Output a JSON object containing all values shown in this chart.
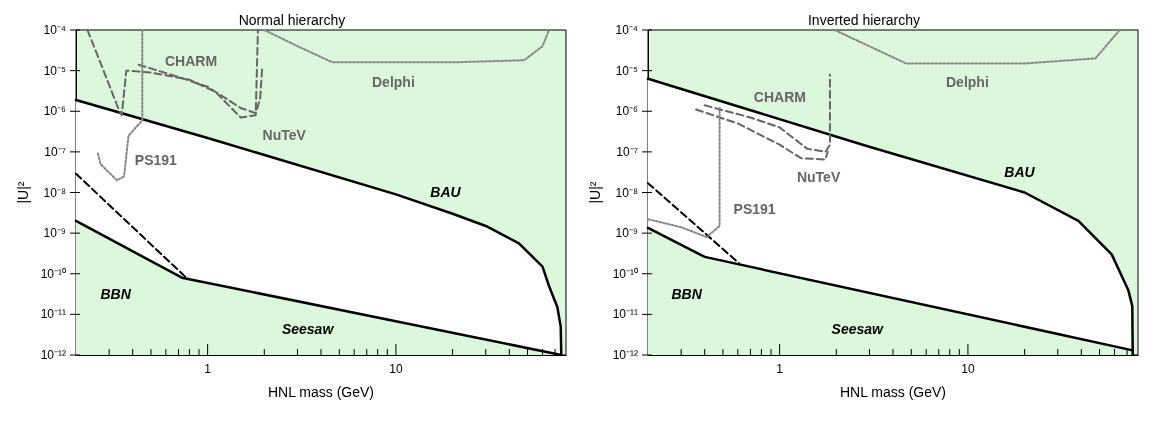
{
  "chart_data": [
    {
      "type": "line",
      "title": "Normal hierarchy",
      "xlabel": "HNL mass (GeV)",
      "ylabel": "|U|²",
      "log": "xy",
      "grid": false,
      "xlim": [
        0.2,
        80
      ],
      "ylim": [
        1e-12,
        0.0001
      ],
      "xticks": [
        {
          "value": 0.3,
          "label": null
        },
        {
          "value": 0.4,
          "label": null
        },
        {
          "value": 0.5,
          "label": null
        },
        {
          "value": 0.6,
          "label": null
        },
        {
          "value": 0.7,
          "label": null
        },
        {
          "value": 0.8,
          "label": null
        },
        {
          "value": 0.9,
          "label": null
        },
        {
          "value": 1,
          "label": "1"
        },
        {
          "value": 2,
          "label": null
        },
        {
          "value": 3,
          "label": null
        },
        {
          "value": 4,
          "label": null
        },
        {
          "value": 5,
          "label": null
        },
        {
          "value": 6,
          "label": null
        },
        {
          "value": 7,
          "label": null
        },
        {
          "value": 8,
          "label": null
        },
        {
          "value": 9,
          "label": null
        },
        {
          "value": 10,
          "label": "10"
        },
        {
          "value": 20,
          "label": null
        },
        {
          "value": 30,
          "label": null
        },
        {
          "value": 40,
          "label": null
        },
        {
          "value": 50,
          "label": null
        },
        {
          "value": 60,
          "label": null
        },
        {
          "value": 70,
          "label": null
        }
      ],
      "yticks": [
        {
          "value": 1e-12,
          "label": "10⁻¹²"
        },
        {
          "value": 1e-11,
          "label": "10⁻¹¹"
        },
        {
          "value": 1e-10,
          "label": "10⁻¹⁰"
        },
        {
          "value": 1e-09,
          "label": "10⁻⁹"
        },
        {
          "value": 1e-08,
          "label": "10⁻⁸"
        },
        {
          "value": 1e-07,
          "label": "10⁻⁷"
        },
        {
          "value": 1e-06,
          "label": "10⁻⁶"
        },
        {
          "value": 1e-05,
          "label": "10⁻⁵"
        },
        {
          "value": 0.0001,
          "label": "10⁻⁴"
        }
      ],
      "series": [
        {
          "type": "area",
          "color": "#000000",
          "line_style": "solid",
          "x": [
            0.2,
            1,
            10,
            20,
            30,
            45,
            60,
            65,
            72,
            75,
            75.5
          ],
          "values": [
            1.9e-06,
            2.2e-07,
            9e-09,
            3e-09,
            1.5e-09,
            5.6e-10,
            1.5e-10,
            5e-11,
            1.5e-11,
            5e-12,
            1e-12
          ]
        },
        {
          "type": "area",
          "color": "#000000",
          "line_style": "solid",
          "x": [
            0.2,
            0.73,
            75.5
          ],
          "values": [
            2e-09,
            8e-11,
            1e-12
          ]
        },
        {
          "color": "#000000",
          "line_style": "dashed",
          "x": [
            0.2,
            0.77
          ],
          "values": [
            2.9e-08,
            8e-11
          ]
        },
        {
          "color": "#666666",
          "line_style": "dashed",
          "x": [
            0.23,
            0.28,
            0.34,
            0.35,
            0.37,
            0.5,
            0.8,
            1.1,
            1.5,
            1.8,
            1.85
          ],
          "values": [
            0.0001,
            1e-05,
            1e-06,
            8e-07,
            1e-05,
            9e-06,
            6e-06,
            3e-06,
            7e-07,
            8e-07,
            0.0001
          ]
        },
        {
          "color": "#666666",
          "line_style": "dashed",
          "x": [
            0.43,
            0.7,
            1.0,
            1.5,
            1.8,
            1.9,
            1.95
          ],
          "values": [
            1.4e-05,
            7e-06,
            4e-06,
            1.2e-06,
            9e-07,
            2e-06,
            1.2e-05
          ]
        },
        {
          "color": "#888888",
          "line_style": "dotted",
          "x": [
            0.45,
            0.45,
            0.38,
            0.36,
            0.33,
            0.27,
            0.26
          ],
          "values": [
            0.0001,
            6e-07,
            2.5e-07,
            2.5e-08,
            2e-08,
            5e-08,
            1e-07
          ]
        },
        {
          "color": "#888888",
          "line_style": "dotted",
          "x": [
            2,
            3,
            4.6,
            20,
            48,
            60,
            65
          ],
          "values": [
            0.0001,
            4e-05,
            1.6e-05,
            1.6e-05,
            1.8e-05,
            4e-05,
            0.0001
          ]
        }
      ],
      "annotations": [
        "BAU",
        "Seesaw",
        "BBN",
        "CHARM",
        "NuTeV",
        "PS191",
        "Delphi"
      ]
    },
    {
      "type": "line",
      "title": "Inverted hierarchy",
      "xlabel": "HNL mass (GeV)",
      "ylabel": "|U|²",
      "log": "xy",
      "grid": false,
      "xlim": [
        0.2,
        80
      ],
      "ylim": [
        1e-12,
        0.0001
      ],
      "xticks": [
        {
          "value": 0.3,
          "label": null
        },
        {
          "value": 0.4,
          "label": null
        },
        {
          "value": 0.5,
          "label": null
        },
        {
          "value": 0.6,
          "label": null
        },
        {
          "value": 0.7,
          "label": null
        },
        {
          "value": 0.8,
          "label": null
        },
        {
          "value": 0.9,
          "label": null
        },
        {
          "value": 1,
          "label": "1"
        },
        {
          "value": 2,
          "label": null
        },
        {
          "value": 3,
          "label": null
        },
        {
          "value": 4,
          "label": null
        },
        {
          "value": 5,
          "label": null
        },
        {
          "value": 6,
          "label": null
        },
        {
          "value": 7,
          "label": null
        },
        {
          "value": 8,
          "label": null
        },
        {
          "value": 9,
          "label": null
        },
        {
          "value": 10,
          "label": "10"
        },
        {
          "value": 20,
          "label": null
        },
        {
          "value": 30,
          "label": null
        },
        {
          "value": 40,
          "label": null
        },
        {
          "value": 50,
          "label": null
        },
        {
          "value": 60,
          "label": null
        },
        {
          "value": 70,
          "label": null
        }
      ],
      "yticks": [
        {
          "value": 1e-12,
          "label": "10⁻¹²"
        },
        {
          "value": 1e-11,
          "label": "10⁻¹¹"
        },
        {
          "value": 1e-10,
          "label": "10⁻¹⁰"
        },
        {
          "value": 1e-09,
          "label": "10⁻⁹"
        },
        {
          "value": 1e-08,
          "label": "10⁻⁸"
        },
        {
          "value": 1e-07,
          "label": "10⁻⁷"
        },
        {
          "value": 1e-06,
          "label": "10⁻⁶"
        },
        {
          "value": 1e-05,
          "label": "10⁻⁵"
        },
        {
          "value": 0.0001,
          "label": "10⁻⁴"
        }
      ],
      "series": [
        {
          "type": "area",
          "color": "#000000",
          "line_style": "solid",
          "x": [
            0.2,
            2.9,
            20,
            38.6,
            58,
            71,
            74.6,
            75
          ],
          "values": [
            6.3e-06,
            1.4e-07,
            1e-08,
            2e-09,
            3e-10,
            4e-11,
            1.6e-11,
            1e-12
          ]
        },
        {
          "type": "area",
          "color": "#000000",
          "line_style": "solid",
          "x": [
            0.2,
            0.4,
            75
          ],
          "values": [
            1.35e-09,
            2.6e-10,
            1.3e-12
          ]
        },
        {
          "color": "#000000",
          "line_style": "dashed",
          "x": [
            0.2,
            0.61
          ],
          "values": [
            1.7e-08,
            1.8e-10
          ]
        },
        {
          "color": "#666666",
          "line_style": "dashed",
          "x": [
            0.4,
            0.7,
            1.0,
            1.4,
            1.75,
            1.85,
            1.85
          ],
          "values": [
            1.4e-06,
            7e-07,
            4e-07,
            1.2e-07,
            1e-07,
            1.5e-07,
            8e-06
          ]
        },
        {
          "color": "#666666",
          "line_style": "dashed",
          "x": [
            0.36,
            0.6,
            1.0,
            1.3,
            1.75,
            1.8
          ],
          "values": [
            1.1e-06,
            5e-07,
            1.5e-07,
            7e-08,
            6.5e-08,
            1e-07
          ]
        },
        {
          "color": "#888888",
          "line_style": "dotted",
          "x": [
            0.2,
            0.3,
            0.41,
            0.48,
            0.48
          ],
          "values": [
            2.2e-09,
            1.4e-09,
            8e-10,
            1.5e-09,
            1.2e-06
          ]
        },
        {
          "color": "#888888",
          "line_style": "dotted",
          "x": [
            1.96,
            4.7,
            20,
            47.5,
            64
          ],
          "values": [
            0.0001,
            1.5e-05,
            1.5e-05,
            2e-05,
            0.0001
          ]
        }
      ],
      "annotations": [
        "BAU",
        "Seesaw",
        "BBN",
        "CHARM",
        "NuTeV",
        "PS191",
        "Delphi"
      ]
    }
  ]
}
